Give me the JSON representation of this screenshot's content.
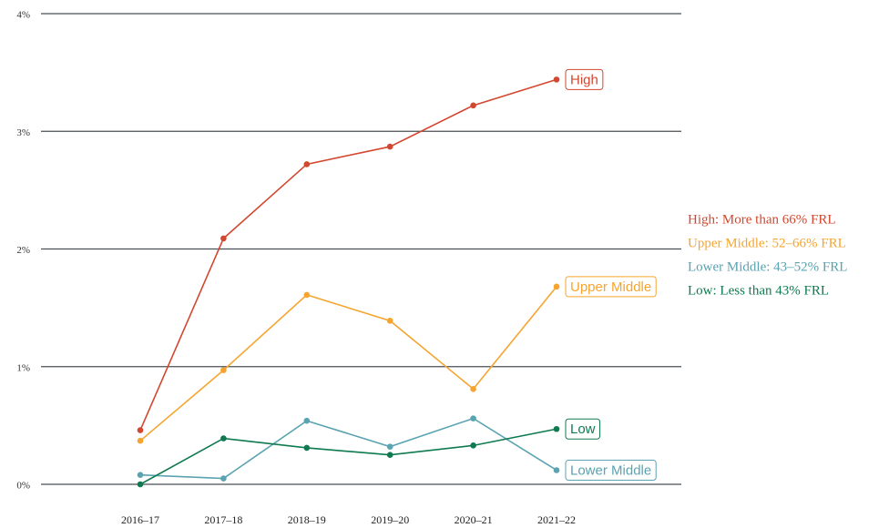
{
  "chart_data": {
    "type": "line",
    "categories": [
      "2016–17",
      "2017–18",
      "2018–19",
      "2019–20",
      "2020–21",
      "2021–22"
    ],
    "series": [
      {
        "name": "High",
        "color": "#d2472f",
        "values": [
          0.46,
          2.09,
          2.72,
          2.87,
          3.22,
          3.44
        ]
      },
      {
        "name": "Upper Middle",
        "color": "#f5a52f",
        "values": [
          0.37,
          0.97,
          1.61,
          1.39,
          0.81,
          1.68
        ]
      },
      {
        "name": "Lower Middle",
        "color": "#5aa3b0",
        "values": [
          0.08,
          0.05,
          0.54,
          0.32,
          0.56,
          0.12
        ]
      },
      {
        "name": "Low",
        "color": "#0f7a50",
        "values": [
          0,
          0.39,
          0.31,
          0.25,
          0.33,
          0.47
        ]
      }
    ],
    "ylim": [
      0,
      4
    ],
    "yticks": [
      {
        "value": 0,
        "label": "0%"
      },
      {
        "value": 1,
        "label": "1%"
      },
      {
        "value": 2,
        "label": "2%"
      },
      {
        "value": 3,
        "label": "3%"
      },
      {
        "value": 4,
        "label": "4%"
      }
    ],
    "grid": true,
    "annotations": [
      "High: More than 66% FRL",
      "Upper Middle: 52–66% FRL",
      "Lower Middle: 43–52% FRL",
      "Low: Less than 43% FRL"
    ]
  }
}
